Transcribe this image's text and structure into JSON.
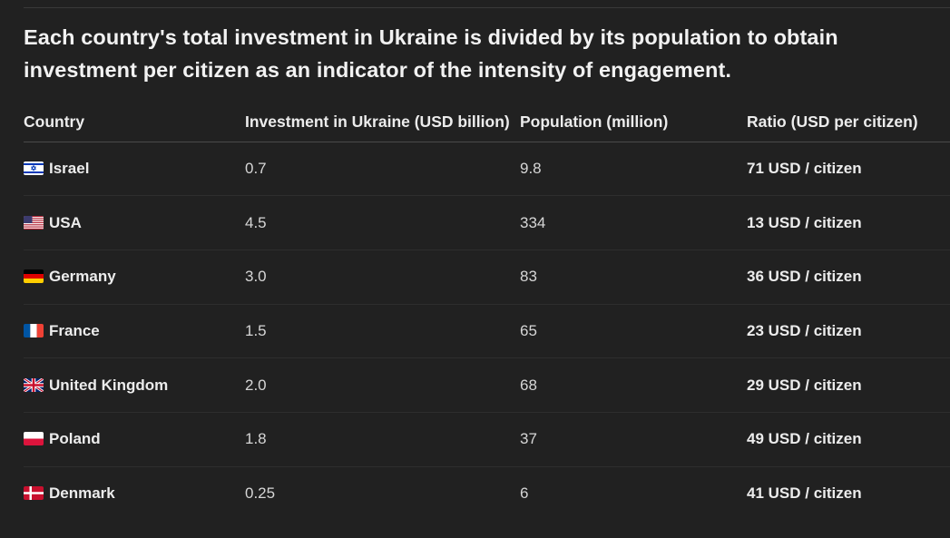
{
  "intro": "Each country's total investment in Ukraine is divided by its population to obtain investment per citizen as an indicator of the intensity of engagement.",
  "table": {
    "headers": [
      "Country",
      "Investment in Ukraine (USD billion)",
      "Population (million)",
      "Ratio (USD per citizen)"
    ],
    "rows": [
      {
        "flag": "israel-flag-icon",
        "country": "Israel",
        "investment": "0.7",
        "population": "9.8",
        "ratio": "71 USD / citizen"
      },
      {
        "flag": "usa-flag-icon",
        "country": "USA",
        "investment": "4.5",
        "population": "334",
        "ratio": "13 USD / citizen"
      },
      {
        "flag": "germany-flag-icon",
        "country": "Germany",
        "investment": "3.0",
        "population": "83",
        "ratio": "36 USD / citizen"
      },
      {
        "flag": "france-flag-icon",
        "country": "France",
        "investment": "1.5",
        "population": "65",
        "ratio": "23 USD / citizen"
      },
      {
        "flag": "uk-flag-icon",
        "country": "United Kingdom",
        "investment": "2.0",
        "population": "68",
        "ratio": "29 USD / citizen"
      },
      {
        "flag": "poland-flag-icon",
        "country": "Poland",
        "investment": "1.8",
        "population": "37",
        "ratio": "49 USD / citizen"
      },
      {
        "flag": "denmark-flag-icon",
        "country": "Denmark",
        "investment": "0.25",
        "population": "6",
        "ratio": "41 USD / citizen"
      }
    ]
  }
}
